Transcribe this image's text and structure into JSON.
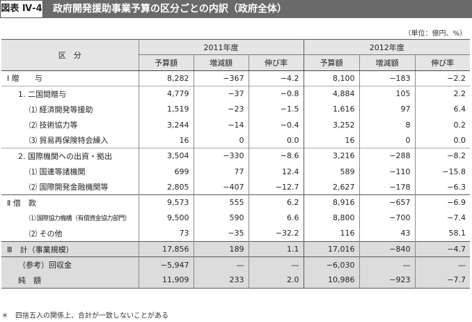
{
  "header": {
    "label": "図表 Ⅳ-4",
    "title": "政府開発援助事業予算の区分ごとの内訳（政府全体）"
  },
  "unit": "（単位：億円、%）",
  "table": {
    "category_header": "区　分",
    "year1": "2011年度",
    "year2": "2012年度",
    "cols": [
      "予算額",
      "増減額",
      "伸び率",
      "予算額",
      "増減額",
      "伸び率"
    ],
    "rows": [
      {
        "label": "Ⅰ 贈　　与",
        "vals": [
          "8,282",
          "−367",
          "−4.2",
          "8,100",
          "−183",
          "−2.2"
        ]
      },
      {
        "label": "1. 二国間贈与",
        "vals": [
          "4,779",
          "−37",
          "−0.8",
          "4,884",
          "105",
          "2.2"
        ]
      },
      {
        "label": "⑴ 経済開発等援助",
        "vals": [
          "1,519",
          "−23",
          "−1.5",
          "1,616",
          "97",
          "6.4"
        ]
      },
      {
        "label": "⑵ 技術協力等",
        "vals": [
          "3,244",
          "−14",
          "−0.4",
          "3,252",
          "8",
          "0.2"
        ]
      },
      {
        "label": "⑶ 貿易再保険特会繰入",
        "vals": [
          "16",
          "0",
          "0.0",
          "16",
          "0",
          "0.0"
        ]
      },
      {
        "label": "2. 国際機関への出資・拠出",
        "vals": [
          "3,504",
          "−330",
          "−8.6",
          "3,216",
          "−288",
          "−8.2"
        ]
      },
      {
        "label": "⑴ 国連等諸機関",
        "vals": [
          "699",
          "77",
          "12.4",
          "589",
          "−110",
          "−15.8"
        ]
      },
      {
        "label": "⑵ 国際開発金融機関等",
        "vals": [
          "2,805",
          "−407",
          "−12.7",
          "2,627",
          "−178",
          "−6.3"
        ]
      },
      {
        "label": "Ⅱ 借　款",
        "vals": [
          "9,573",
          "555",
          "6.2",
          "8,916",
          "−657",
          "−6.9"
        ]
      },
      {
        "label": "⑴ 国際協力機構（有償資金協力部門）",
        "vals": [
          "9,500",
          "590",
          "6.6",
          "8,800",
          "−700",
          "−7.4"
        ]
      },
      {
        "label": "⑵ その他",
        "vals": [
          "73",
          "−35",
          "−32.2",
          "116",
          "43",
          "58.1"
        ]
      },
      {
        "label": "Ⅲ　計（事業規模）",
        "vals": [
          "17,856",
          "189",
          "1.1",
          "17,016",
          "−840",
          "−4.7"
        ]
      },
      {
        "label": "（参考）回収金",
        "vals": [
          "−5,947",
          "—",
          "—",
          "−6,030",
          "—",
          "—"
        ]
      },
      {
        "label": "純　額",
        "vals": [
          "11,909",
          "233",
          "2.0",
          "10,986",
          "−923",
          "−7.7"
        ]
      }
    ]
  },
  "footnote": "＊　四捨五入の関係上、合計が一致しないことがある"
}
